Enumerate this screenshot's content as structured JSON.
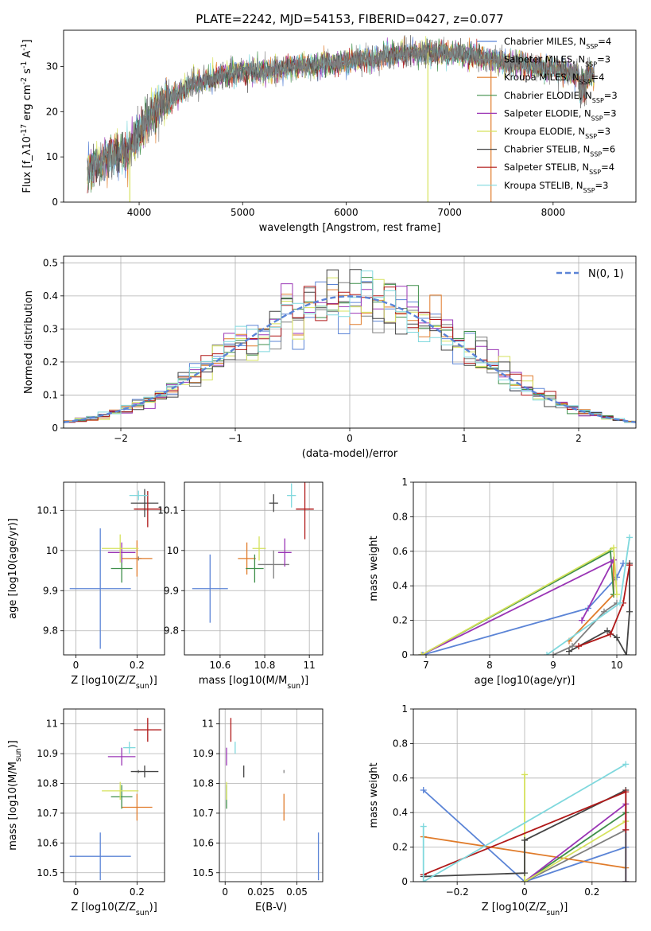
{
  "figure_title": "PLATE=2242, MJD=54153, FIBERID=0427, z=0.077",
  "models": [
    {
      "name": "Chabrier MILES, N_SSP=4",
      "lib": "Chabrier MILES",
      "n": "4",
      "color": "#5b84d6"
    },
    {
      "name": "Salpeter MILES, N_SSP=3",
      "lib": "Salpeter MILES",
      "n": "3",
      "color": "#7f7f7f"
    },
    {
      "name": "Kroupa MILES, N_SSP=4",
      "lib": "Kroupa MILES",
      "n": "4",
      "color": "#e07b2a"
    },
    {
      "name": "Chabrier ELODIE, N_SSP=3",
      "lib": "Chabrier ELODIE",
      "n": "3",
      "color": "#3f8f4a"
    },
    {
      "name": "Salpeter ELODIE, N_SSP=3",
      "lib": "Salpeter ELODIE",
      "n": "3",
      "color": "#9a35b5"
    },
    {
      "name": "Kroupa ELODIE, N_SSP=3",
      "lib": "Kroupa ELODIE",
      "n": "3",
      "color": "#d5e25c"
    },
    {
      "name": "Chabrier STELIB, N_SSP=6",
      "lib": "Chabrier STELIB",
      "n": "6",
      "color": "#444444"
    },
    {
      "name": "Salpeter STELIB, N_SSP=4",
      "lib": "Salpeter STELIB",
      "n": "4",
      "color": "#b01818"
    },
    {
      "name": "Kroupa STELIB, N_SSP=3",
      "lib": "Kroupa STELIB",
      "n": "3",
      "color": "#7fd8dd"
    }
  ],
  "chart_data": [
    {
      "type": "line",
      "id": "spectrum",
      "xlabel": "wavelength [Angstrom, rest frame]",
      "ylabel": "Flux [f_λ10^-17 erg cm^-2 s^-1 A^-1]",
      "xlim": [
        3270,
        8800
      ],
      "ylim": [
        0,
        38
      ],
      "xticks": [
        4000,
        5000,
        6000,
        7000,
        8000
      ],
      "yticks": [
        0,
        10,
        20,
        30
      ],
      "grid": false,
      "legend": "right",
      "data_x": [
        3500,
        3700,
        3900,
        4000,
        4200,
        4500,
        4800,
        5000,
        5200,
        5500,
        5800,
        6000,
        6300,
        6600,
        6900,
        7200,
        7500,
        7800,
        8100,
        8400
      ],
      "data_y": [
        7,
        10,
        11,
        16,
        21,
        26,
        28,
        29,
        29,
        30,
        30.5,
        31,
        32,
        33,
        33,
        32.5,
        31,
        30,
        29,
        28
      ],
      "drops": [
        {
          "x": 3910,
          "to": 0
        },
        {
          "x": 6790,
          "to": 0
        },
        {
          "x": 7400,
          "to": 0
        }
      ]
    },
    {
      "type": "line",
      "id": "residual-histogram",
      "xlabel": "(data-model)/error",
      "ylabel": "Normed distribution",
      "xlim": [
        -2.5,
        2.5
      ],
      "ylim": [
        0,
        0.52
      ],
      "xticks": [
        -2,
        -1,
        0,
        1,
        2
      ],
      "yticks": [
        0.0,
        0.1,
        0.2,
        0.3,
        0.4,
        0.5
      ],
      "grid": true,
      "legend": "top-right",
      "reference_label": "N(0, 1)",
      "bin_width": 0.1
    },
    {
      "type": "scatter",
      "id": "age-vs-Z",
      "xlabel": "Z [log10(Z/Z_sun)]",
      "ylabel": "age [log10(age/yr)]",
      "xlim": [
        -0.04,
        0.29
      ],
      "ylim": [
        9.74,
        10.17
      ],
      "xticks": [
        0.0,
        0.2
      ],
      "yticks": [
        9.8,
        9.9,
        10.0,
        10.1
      ],
      "grid": true,
      "points": [
        {
          "x": 0.08,
          "y": 9.905,
          "xerr": 0.1,
          "yerr": 0.15
        },
        {
          "x": 0.205,
          "y": 9.98,
          "xerr": 0.01,
          "yerr": 0.005
        },
        {
          "x": 0.2,
          "y": 9.98,
          "xerr": 0.05,
          "yerr": 0.045
        },
        {
          "x": 0.15,
          "y": 9.955,
          "xerr": 0.035,
          "yerr": 0.035
        },
        {
          "x": 0.15,
          "y": 9.995,
          "xerr": 0.045,
          "yerr": 0.025
        },
        {
          "x": 0.145,
          "y": 10.005,
          "xerr": 0.06,
          "yerr": 0.035
        },
        {
          "x": 0.225,
          "y": 10.118,
          "xerr": 0.045,
          "yerr": 0.035
        },
        {
          "x": 0.235,
          "y": 10.103,
          "xerr": 0.045,
          "yerr": 0.045
        },
        {
          "x": 0.205,
          "y": 10.137,
          "xerr": 0.03,
          "yerr": 0.012
        }
      ]
    },
    {
      "type": "scatter",
      "id": "age-vs-mass",
      "xlabel": "mass [log10(M/M_sun)]",
      "ylabel": "",
      "xlim": [
        10.44,
        11.06
      ],
      "ylim": [
        9.74,
        10.17
      ],
      "xticks": [
        10.6,
        10.8,
        11.0
      ],
      "yticks": [
        9.8,
        9.9,
        10.0,
        10.1
      ],
      "grid": true,
      "points": [
        {
          "x": 10.555,
          "y": 9.905,
          "xerr": 0.08,
          "yerr": 0.085
        },
        {
          "x": 10.84,
          "y": 9.965,
          "xerr": 0.07,
          "yerr": 0.035
        },
        {
          "x": 10.72,
          "y": 9.98,
          "xerr": 0.04,
          "yerr": 0.04
        },
        {
          "x": 10.755,
          "y": 9.955,
          "xerr": 0.04,
          "yerr": 0.035
        },
        {
          "x": 10.89,
          "y": 9.995,
          "xerr": 0.03,
          "yerr": 0.035
        },
        {
          "x": 10.775,
          "y": 10.005,
          "xerr": 0.03,
          "yerr": 0.03
        },
        {
          "x": 10.84,
          "y": 10.118,
          "xerr": 0.02,
          "yerr": 0.022
        },
        {
          "x": 10.98,
          "y": 10.103,
          "xerr": 0.04,
          "yerr": 0.075
        },
        {
          "x": 10.92,
          "y": 10.137,
          "xerr": 0.02,
          "yerr": 0.03
        }
      ]
    },
    {
      "type": "line",
      "id": "mass-weight-vs-age",
      "xlabel": "age [log10(age/yr)]",
      "ylabel": "mass weight",
      "xlim": [
        6.8,
        10.3
      ],
      "ylim": [
        0,
        1
      ],
      "xticks": [
        7,
        8,
        9,
        10
      ],
      "yticks": [
        0.0,
        0.2,
        0.4,
        0.6,
        0.8,
        1.0
      ],
      "grid": true,
      "series": [
        {
          "x": [
            6.95,
            9.55,
            10.0,
            10.1
          ],
          "y": [
            0.0,
            0.27,
            0.45,
            0.53
          ]
        },
        {
          "x": [
            9.0,
            9.3,
            9.8,
            10.0
          ],
          "y": [
            0.0,
            0.05,
            0.25,
            0.3
          ]
        },
        {
          "x": [
            9.25,
            9.95,
            9.95
          ],
          "y": [
            0.08,
            0.35,
            0.55
          ]
        },
        {
          "x": [
            6.93,
            9.9,
            9.95
          ],
          "y": [
            0.0,
            0.6,
            0.35
          ]
        },
        {
          "x": [
            6.93,
            9.95,
            9.45
          ],
          "y": [
            0.0,
            0.55,
            0.2
          ]
        },
        {
          "x": [
            6.93,
            9.95,
            10.0
          ],
          "y": [
            0.0,
            0.62,
            0.35
          ]
        },
        {
          "x": [
            9.25,
            9.85,
            10.0,
            10.15,
            10.2,
            10.2
          ],
          "y": [
            0.02,
            0.14,
            0.1,
            0.0,
            0.25,
            0.53
          ]
        },
        {
          "x": [
            9.4,
            9.9,
            10.1,
            10.2
          ],
          "y": [
            0.05,
            0.12,
            0.3,
            0.52
          ]
        },
        {
          "x": [
            8.9,
            10.05,
            10.2
          ],
          "y": [
            0.0,
            0.3,
            0.68
          ]
        }
      ]
    },
    {
      "type": "scatter",
      "id": "mass-vs-Z",
      "xlabel": "Z [log10(Z/Z_sun)]",
      "ylabel": "mass [log10(M/M_sun)]",
      "xlim": [
        -0.04,
        0.29
      ],
      "ylim": [
        10.47,
        11.05
      ],
      "xticks": [
        0.0,
        0.2
      ],
      "yticks": [
        10.5,
        10.6,
        10.7,
        10.8,
        10.9,
        11.0
      ],
      "grid": true,
      "points": [
        {
          "x": 0.08,
          "y": 10.555,
          "xerr": 0.1,
          "yerr": 0.08
        },
        {
          "x": 0.205,
          "y": 10.84,
          "xerr": 0.01,
          "yerr": 0.005
        },
        {
          "x": 0.2,
          "y": 10.72,
          "xerr": 0.05,
          "yerr": 0.045
        },
        {
          "x": 0.15,
          "y": 10.755,
          "xerr": 0.035,
          "yerr": 0.04
        },
        {
          "x": 0.15,
          "y": 10.89,
          "xerr": 0.045,
          "yerr": 0.03
        },
        {
          "x": 0.145,
          "y": 10.775,
          "xerr": 0.06,
          "yerr": 0.03
        },
        {
          "x": 0.225,
          "y": 10.84,
          "xerr": 0.045,
          "yerr": 0.02
        },
        {
          "x": 0.235,
          "y": 10.98,
          "xerr": 0.045,
          "yerr": 0.04
        },
        {
          "x": 0.175,
          "y": 10.92,
          "xerr": 0.02,
          "yerr": 0.02
        }
      ]
    },
    {
      "type": "scatter",
      "id": "mass-vs-EBV",
      "xlabel": "E(B-V)",
      "ylabel": "",
      "xlim": [
        -0.004,
        0.068
      ],
      "ylim": [
        10.47,
        11.05
      ],
      "xticks": [
        0.0,
        0.025,
        0.05
      ],
      "yticks": [
        10.5,
        10.6,
        10.7,
        10.8,
        10.9,
        11.0
      ],
      "grid": true,
      "points": [
        {
          "x": 0.065,
          "y": 10.555,
          "yerr": 0.08
        },
        {
          "x": 0.041,
          "y": 10.84,
          "yerr": 0.005
        },
        {
          "x": 0.041,
          "y": 10.72,
          "yerr": 0.045
        },
        {
          "x": 0.001,
          "y": 10.755,
          "yerr": 0.04
        },
        {
          "x": 0.001,
          "y": 10.89,
          "yerr": 0.03
        },
        {
          "x": 0.001,
          "y": 10.775,
          "yerr": 0.03
        },
        {
          "x": 0.013,
          "y": 10.84,
          "yerr": 0.02
        },
        {
          "x": 0.004,
          "y": 10.98,
          "yerr": 0.04
        },
        {
          "x": 0.007,
          "y": 10.92,
          "yerr": 0.02
        }
      ]
    },
    {
      "type": "line",
      "id": "mass-weight-vs-Z",
      "xlabel": "Z [log10(Z/Z_sun)]",
      "ylabel": "mass weight",
      "xlim": [
        -0.33,
        0.33
      ],
      "ylim": [
        0,
        1
      ],
      "xticks": [
        -0.2,
        0.0,
        0.2
      ],
      "yticks": [
        0.0,
        0.2,
        0.4,
        0.6,
        0.8,
        1.0
      ],
      "grid": true,
      "series": [
        {
          "x": [
            -0.3,
            0.0,
            0.3
          ],
          "y": [
            0.53,
            0.0,
            0.2
          ]
        },
        {
          "x": [
            0.0,
            0.3
          ],
          "y": [
            0.0,
            0.3
          ]
        },
        {
          "x": [
            -0.3,
            0.3
          ],
          "y": [
            0.26,
            0.08
          ]
        },
        {
          "x": [
            0.0,
            0.3
          ],
          "y": [
            0.0,
            0.4
          ]
        },
        {
          "x": [
            0.0,
            0.3,
            0.3
          ],
          "y": [
            0.0,
            0.45,
            0.0
          ]
        },
        {
          "x": [
            0.0,
            0.0,
            0.3
          ],
          "y": [
            0.62,
            0.0,
            0.35
          ]
        },
        {
          "x": [
            -0.3,
            0.0,
            0.0,
            0.3,
            0.3
          ],
          "y": [
            0.03,
            0.05,
            0.24,
            0.53,
            0.0
          ]
        },
        {
          "x": [
            -0.3,
            0.3,
            0.3
          ],
          "y": [
            0.04,
            0.52,
            0.3
          ]
        },
        {
          "x": [
            -0.3,
            -0.3,
            0.3
          ],
          "y": [
            0.32,
            0.0,
            0.68
          ]
        }
      ]
    }
  ]
}
